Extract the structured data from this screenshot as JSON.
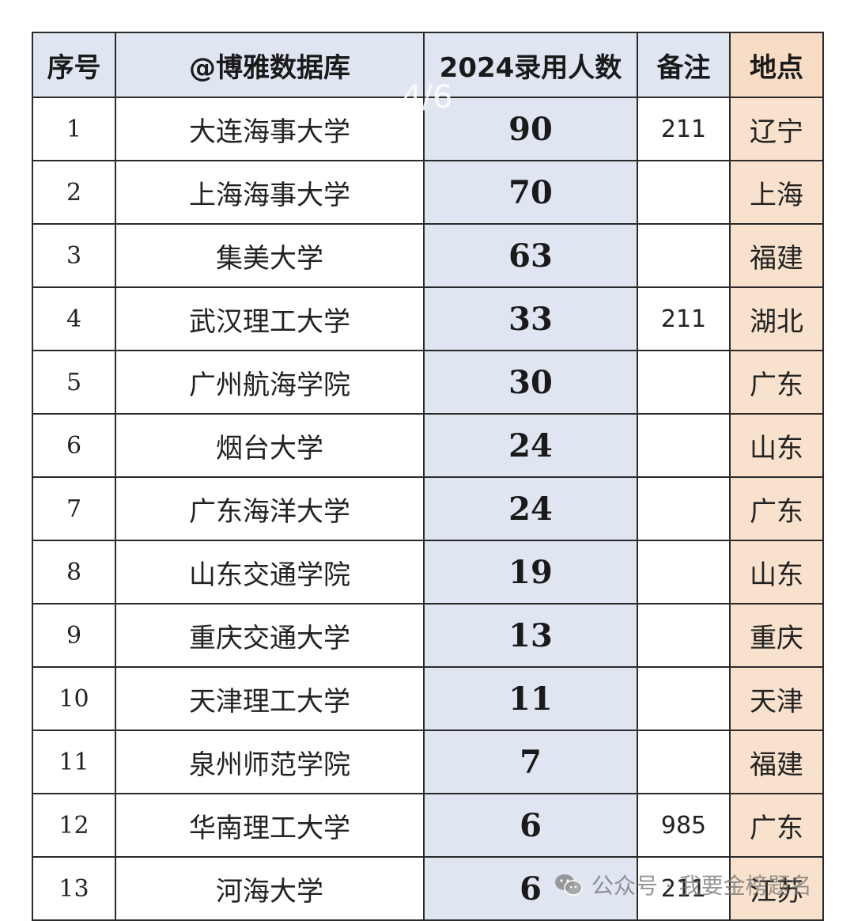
{
  "table": {
    "headers": {
      "index": "序号",
      "school": "@博雅数据库",
      "count": "2024录用人数",
      "note": "备注",
      "location": "地点"
    },
    "rows": [
      {
        "index": "1",
        "school": "大连海事大学",
        "count": "90",
        "note": "211",
        "location": "辽宁"
      },
      {
        "index": "2",
        "school": "上海海事大学",
        "count": "70",
        "note": "",
        "location": "上海"
      },
      {
        "index": "3",
        "school": "集美大学",
        "count": "63",
        "note": "",
        "location": "福建"
      },
      {
        "index": "4",
        "school": "武汉理工大学",
        "count": "33",
        "note": "211",
        "location": "湖北"
      },
      {
        "index": "5",
        "school": "广州航海学院",
        "count": "30",
        "note": "",
        "location": "广东"
      },
      {
        "index": "6",
        "school": "烟台大学",
        "count": "24",
        "note": "",
        "location": "山东"
      },
      {
        "index": "7",
        "school": "广东海洋大学",
        "count": "24",
        "note": "",
        "location": "广东"
      },
      {
        "index": "8",
        "school": "山东交通学院",
        "count": "19",
        "note": "",
        "location": "山东"
      },
      {
        "index": "9",
        "school": "重庆交通大学",
        "count": "13",
        "note": "",
        "location": "重庆"
      },
      {
        "index": "10",
        "school": "天津理工大学",
        "count": "11",
        "note": "",
        "location": "天津"
      },
      {
        "index": "11",
        "school": "泉州师范学院",
        "count": "7",
        "note": "",
        "location": "福建"
      },
      {
        "index": "12",
        "school": "华南理工大学",
        "count": "6",
        "note": "985",
        "location": "广东"
      },
      {
        "index": "13",
        "school": "河海大学",
        "count": "6",
        "note": "211",
        "location": "江苏"
      }
    ]
  },
  "overlay": {
    "page_indicator": "4/6",
    "watermark_text": "公众号 · 我要金榜题名",
    "watermark_icon": "wechat-icon"
  },
  "colors": {
    "header_blue": "#dfe5f1",
    "count_column": "#dfe5f1",
    "location_column": "#f8e2cd",
    "border": "#2a2a2a"
  }
}
